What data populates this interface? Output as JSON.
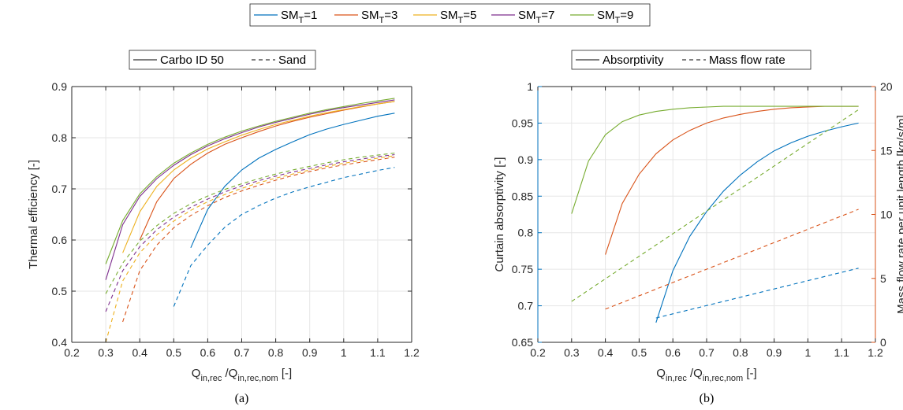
{
  "colors": {
    "sm1": "#0072BD",
    "sm3": "#D95319",
    "sm5": "#EDB120",
    "sm7": "#7E2F8E",
    "sm9": "#77AC30",
    "axis": "#262626",
    "grid": "#e6e6e6",
    "left_axis_b": "#0072BD",
    "right_axis_b": "#D95319"
  },
  "top_legend": {
    "entries": [
      {
        "base": "SM",
        "sub": "T",
        "suffix": "=1",
        "color_key": "sm1"
      },
      {
        "base": "SM",
        "sub": "T",
        "suffix": "=3",
        "color_key": "sm3"
      },
      {
        "base": "SM",
        "sub": "T",
        "suffix": "=5",
        "color_key": "sm5"
      },
      {
        "base": "SM",
        "sub": "T",
        "suffix": "=7",
        "color_key": "sm7"
      },
      {
        "base": "SM",
        "sub": "T",
        "suffix": "=9",
        "color_key": "sm9"
      }
    ]
  },
  "xlabel": {
    "q1": "Q",
    "s1": "in,rec",
    "mid": " /Q",
    "s2": "in,rec,nom",
    "tail": " [-]"
  },
  "chart_data": [
    {
      "type": "line",
      "panel_label": "(a)",
      "ylabel": "Thermal efficiency [-]",
      "xlim": [
        0.2,
        1.2
      ],
      "ylim": [
        0.4,
        0.9
      ],
      "xticks": [
        "0.2",
        "0.3",
        "0.4",
        "0.5",
        "0.6",
        "0.7",
        "0.8",
        "0.9",
        "1",
        "1.1",
        "1.2"
      ],
      "yticks": [
        "0.4",
        "0.5",
        "0.6",
        "0.7",
        "0.8",
        "0.9"
      ],
      "grid": true,
      "legend": {
        "placement": "top",
        "solid_label": "Carbo ID 50",
        "dashed_label": "Sand"
      },
      "series": [
        {
          "name": "SMT=1",
          "color_key": "sm1",
          "style": "solid",
          "x": [
            0.55,
            0.6,
            0.65,
            0.7,
            0.75,
            0.8,
            0.85,
            0.9,
            0.95,
            1.0,
            1.05,
            1.1,
            1.15
          ],
          "y": [
            0.585,
            0.66,
            0.705,
            0.737,
            0.76,
            0.777,
            0.792,
            0.806,
            0.817,
            0.826,
            0.834,
            0.842,
            0.848
          ]
        },
        {
          "name": "SMT=1",
          "color_key": "sm1",
          "style": "dashed",
          "x": [
            0.5,
            0.55,
            0.6,
            0.65,
            0.7,
            0.75,
            0.8,
            0.85,
            0.9,
            0.95,
            1.0,
            1.05,
            1.1,
            1.15
          ],
          "y": [
            0.47,
            0.55,
            0.59,
            0.625,
            0.65,
            0.667,
            0.682,
            0.694,
            0.704,
            0.713,
            0.722,
            0.729,
            0.736,
            0.742
          ]
        },
        {
          "name": "SMT=3",
          "color_key": "sm3",
          "style": "solid",
          "x": [
            0.4,
            0.45,
            0.5,
            0.55,
            0.6,
            0.65,
            0.7,
            0.75,
            0.8,
            0.85,
            0.9,
            0.95,
            1.0,
            1.05,
            1.1,
            1.15
          ],
          "y": [
            0.6,
            0.675,
            0.72,
            0.748,
            0.77,
            0.787,
            0.8,
            0.812,
            0.823,
            0.832,
            0.84,
            0.847,
            0.854,
            0.86,
            0.866,
            0.871
          ]
        },
        {
          "name": "SMT=3",
          "color_key": "sm3",
          "style": "dashed",
          "x": [
            0.35,
            0.4,
            0.45,
            0.5,
            0.55,
            0.6,
            0.65,
            0.7,
            0.75,
            0.8,
            0.85,
            0.9,
            0.95,
            1.0,
            1.05,
            1.1,
            1.15
          ],
          "y": [
            0.44,
            0.54,
            0.59,
            0.624,
            0.648,
            0.667,
            0.683,
            0.696,
            0.707,
            0.717,
            0.726,
            0.734,
            0.741,
            0.747,
            0.752,
            0.757,
            0.762
          ]
        },
        {
          "name": "SMT=5",
          "color_key": "sm5",
          "style": "solid",
          "x": [
            0.35,
            0.4,
            0.45,
            0.5,
            0.55,
            0.6,
            0.65,
            0.7,
            0.75,
            0.8,
            0.85,
            0.9,
            0.95,
            1.0,
            1.05,
            1.1,
            1.15
          ],
          "y": [
            0.575,
            0.655,
            0.705,
            0.737,
            0.76,
            0.778,
            0.792,
            0.805,
            0.816,
            0.826,
            0.834,
            0.842,
            0.849,
            0.855,
            0.861,
            0.866,
            0.871
          ]
        },
        {
          "name": "SMT=5",
          "color_key": "sm5",
          "style": "dashed",
          "x": [
            0.3,
            0.35,
            0.4,
            0.45,
            0.5,
            0.55,
            0.6,
            0.65,
            0.7,
            0.75,
            0.8,
            0.85,
            0.9,
            0.95,
            1.0,
            1.05,
            1.1,
            1.15
          ],
          "y": [
            0.4,
            0.52,
            0.575,
            0.61,
            0.637,
            0.658,
            0.675,
            0.689,
            0.701,
            0.712,
            0.721,
            0.729,
            0.737,
            0.744,
            0.75,
            0.755,
            0.76,
            0.765
          ]
        },
        {
          "name": "SMT=7",
          "color_key": "sm7",
          "style": "solid",
          "x": [
            0.3,
            0.35,
            0.4,
            0.45,
            0.5,
            0.55,
            0.6,
            0.65,
            0.7,
            0.75,
            0.8,
            0.85,
            0.9,
            0.95,
            1.0,
            1.05,
            1.1,
            1.15
          ],
          "y": [
            0.522,
            0.63,
            0.685,
            0.72,
            0.746,
            0.767,
            0.784,
            0.798,
            0.81,
            0.821,
            0.83,
            0.838,
            0.846,
            0.853,
            0.859,
            0.864,
            0.869,
            0.874
          ]
        },
        {
          "name": "SMT=7",
          "color_key": "sm7",
          "style": "dashed",
          "x": [
            0.3,
            0.35,
            0.4,
            0.45,
            0.5,
            0.55,
            0.6,
            0.65,
            0.7,
            0.75,
            0.8,
            0.85,
            0.9,
            0.95,
            1.0,
            1.05,
            1.1,
            1.15
          ],
          "y": [
            0.46,
            0.54,
            0.587,
            0.62,
            0.645,
            0.664,
            0.68,
            0.694,
            0.706,
            0.716,
            0.725,
            0.733,
            0.74,
            0.747,
            0.753,
            0.758,
            0.763,
            0.767
          ]
        },
        {
          "name": "SMT=9",
          "color_key": "sm9",
          "style": "solid",
          "x": [
            0.3,
            0.35,
            0.4,
            0.45,
            0.5,
            0.55,
            0.6,
            0.65,
            0.7,
            0.75,
            0.8,
            0.85,
            0.9,
            0.95,
            1.0,
            1.05,
            1.1,
            1.15
          ],
          "y": [
            0.553,
            0.638,
            0.69,
            0.724,
            0.75,
            0.77,
            0.787,
            0.801,
            0.813,
            0.823,
            0.832,
            0.84,
            0.848,
            0.855,
            0.861,
            0.867,
            0.872,
            0.877
          ]
        },
        {
          "name": "SMT=9",
          "color_key": "sm9",
          "style": "dashed",
          "x": [
            0.3,
            0.35,
            0.4,
            0.45,
            0.5,
            0.55,
            0.6,
            0.65,
            0.7,
            0.75,
            0.8,
            0.85,
            0.9,
            0.95,
            1.0,
            1.05,
            1.1,
            1.15
          ],
          "y": [
            0.495,
            0.555,
            0.598,
            0.628,
            0.652,
            0.671,
            0.686,
            0.699,
            0.71,
            0.72,
            0.729,
            0.737,
            0.744,
            0.751,
            0.757,
            0.762,
            0.766,
            0.77
          ]
        }
      ]
    },
    {
      "type": "line",
      "panel_label": "(b)",
      "ylabel": "Curtain absorptivity [-]",
      "ylabel_right": "Mass flow rate per unit length [kg/s/m]",
      "xlim": [
        0.2,
        1.2
      ],
      "ylim": [
        0.65,
        1.0
      ],
      "ylim_right": [
        0,
        20
      ],
      "xticks": [
        "0.2",
        "0.3",
        "0.4",
        "0.5",
        "0.6",
        "0.7",
        "0.8",
        "0.9",
        "1",
        "1.1",
        "1.2"
      ],
      "yticks": [
        "0.65",
        "0.7",
        "0.75",
        "0.8",
        "0.85",
        "0.9",
        "0.95",
        "1"
      ],
      "yticks_right": [
        "0",
        "5",
        "10",
        "15",
        "20"
      ],
      "grid": true,
      "legend": {
        "placement": "top",
        "solid_label": "Absorptivity",
        "dashed_label": "Mass flow rate"
      },
      "series": [
        {
          "name": "SMT=1",
          "color_key": "sm1",
          "style": "solid",
          "axis": "left",
          "x": [
            0.55,
            0.6,
            0.65,
            0.7,
            0.75,
            0.8,
            0.85,
            0.9,
            0.95,
            1.0,
            1.05,
            1.1,
            1.15
          ],
          "y": [
            0.677,
            0.748,
            0.795,
            0.829,
            0.857,
            0.879,
            0.897,
            0.912,
            0.923,
            0.932,
            0.939,
            0.945,
            0.95
          ]
        },
        {
          "name": "SMT=1",
          "color_key": "sm1",
          "style": "dashed",
          "axis": "right",
          "x": [
            0.55,
            1.15
          ],
          "y": [
            1.9,
            5.8
          ]
        },
        {
          "name": "SMT=3",
          "color_key": "sm3",
          "style": "solid",
          "axis": "left",
          "x": [
            0.4,
            0.45,
            0.5,
            0.55,
            0.6,
            0.65,
            0.7,
            0.75,
            0.8,
            0.85,
            0.9,
            0.95,
            1.0,
            1.05,
            1.1,
            1.15
          ],
          "y": [
            0.77,
            0.84,
            0.88,
            0.908,
            0.927,
            0.94,
            0.95,
            0.957,
            0.962,
            0.966,
            0.969,
            0.971,
            0.972,
            0.973,
            0.973,
            0.973
          ]
        },
        {
          "name": "SMT=3",
          "color_key": "sm3",
          "style": "dashed",
          "axis": "right",
          "x": [
            0.4,
            1.15
          ],
          "y": [
            2.6,
            10.4
          ]
        },
        {
          "name": "SMT=9",
          "color_key": "sm9",
          "style": "solid",
          "axis": "left",
          "x": [
            0.3,
            0.35,
            0.4,
            0.45,
            0.5,
            0.55,
            0.6,
            0.65,
            0.7,
            0.75,
            0.8,
            0.85,
            0.9,
            0.95,
            1.0,
            1.05,
            1.1,
            1.15
          ],
          "y": [
            0.826,
            0.898,
            0.934,
            0.952,
            0.961,
            0.966,
            0.969,
            0.971,
            0.972,
            0.973,
            0.973,
            0.973,
            0.973,
            0.973,
            0.973,
            0.973,
            0.973,
            0.973
          ]
        },
        {
          "name": "SMT=9",
          "color_key": "sm9",
          "style": "dashed",
          "axis": "right",
          "x": [
            0.3,
            1.15
          ],
          "y": [
            3.2,
            18.2
          ]
        }
      ]
    }
  ]
}
